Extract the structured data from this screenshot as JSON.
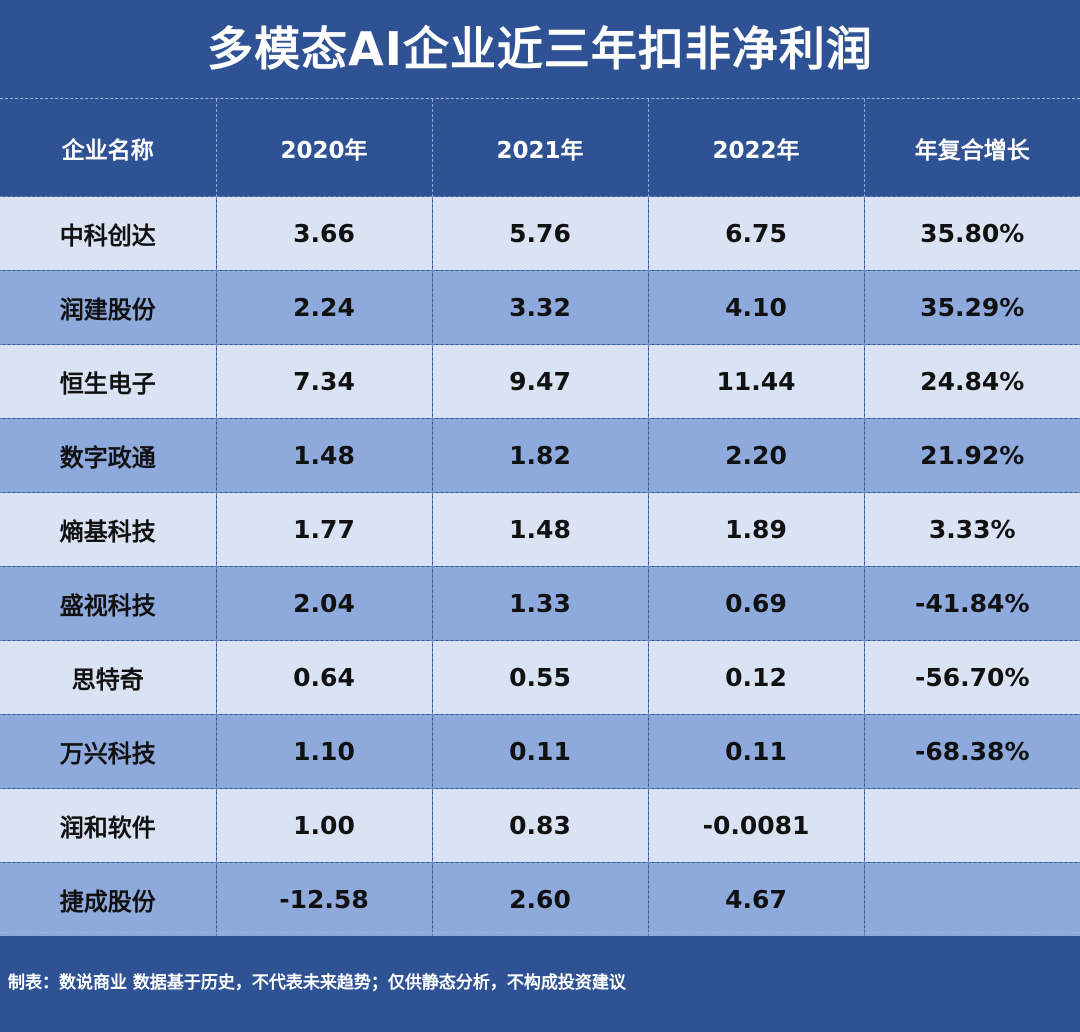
{
  "chart_data": {
    "type": "table",
    "title": "多模态AI企业近三年扣非净利润",
    "columns": [
      "企业名称",
      "2020年",
      "2021年",
      "2022年",
      "年复合增长"
    ],
    "rows": [
      [
        "中科创达",
        "3.66",
        "5.76",
        "6.75",
        "35.80%"
      ],
      [
        "润建股份",
        "2.24",
        "3.32",
        "4.10",
        "35.29%"
      ],
      [
        "恒生电子",
        "7.34",
        "9.47",
        "11.44",
        "24.84%"
      ],
      [
        "数字政通",
        "1.48",
        "1.82",
        "2.20",
        "21.92%"
      ],
      [
        "熵基科技",
        "1.77",
        "1.48",
        "1.89",
        "3.33%"
      ],
      [
        "盛视科技",
        "2.04",
        "1.33",
        "0.69",
        "-41.84%"
      ],
      [
        "思特奇",
        "0.64",
        "0.55",
        "0.12",
        "-56.70%"
      ],
      [
        "万兴科技",
        "1.10",
        "0.11",
        "0.11",
        "-68.38%"
      ],
      [
        "润和软件",
        "1.00",
        "0.83",
        "-0.0081",
        ""
      ],
      [
        "捷成股份",
        "-12.58",
        "2.60",
        "4.67",
        ""
      ]
    ],
    "footer": "制表：数说商业 数据基于历史，不代表未来趋势；仅供静态分析，不构成投资建议"
  },
  "colors": {
    "background": "#2f5295",
    "row_light": "#dae3f3",
    "row_dark": "#8eaadc",
    "header_text": "#ffffff",
    "cell_text": "#111111"
  }
}
